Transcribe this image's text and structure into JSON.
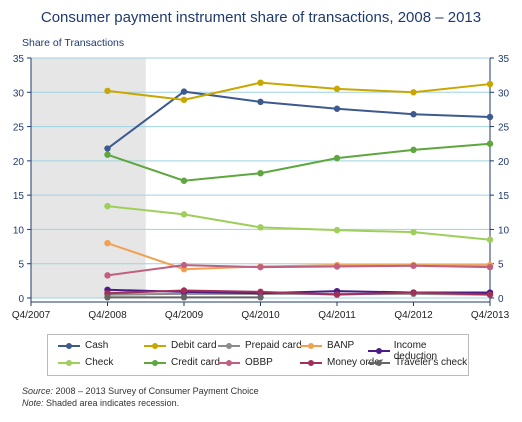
{
  "chart_data": {
    "type": "line",
    "title": "Consumer payment instrument share of transactions, 2008 – 2013",
    "ylabel": "Share of Transactions",
    "xlabel": "",
    "categories": [
      "Q4/2007",
      "Q4/2008",
      "Q4/2009",
      "Q4/2010",
      "Q4/2011",
      "Q4/2012",
      "Q4/2013"
    ],
    "ylim": [
      0,
      35
    ],
    "yticks": [
      0,
      5,
      10,
      15,
      20,
      25,
      30,
      35
    ],
    "grid": true,
    "recession_shading": {
      "from": "Q4/2007",
      "to": "Q2/2009",
      "color": "#e6e6e6"
    },
    "legend_position": "bottom",
    "series": [
      {
        "name": "Cash",
        "color": "#3d5a8f",
        "values": [
          null,
          21.8,
          30.1,
          28.6,
          27.6,
          26.8,
          26.4
        ]
      },
      {
        "name": "Debit card",
        "color": "#c9a700",
        "values": [
          null,
          30.2,
          28.9,
          31.4,
          30.5,
          30.0,
          31.2
        ]
      },
      {
        "name": "Prepaid card",
        "color": "#8c8c8c",
        "values": [
          null,
          0.5,
          0.6,
          0.6,
          0.6,
          0.6,
          0.5
        ]
      },
      {
        "name": "BANP",
        "color": "#f0a050",
        "values": [
          null,
          8.0,
          4.2,
          4.6,
          4.8,
          4.8,
          4.8
        ]
      },
      {
        "name": "Income deduction",
        "color": "#4b1c87",
        "values": [
          null,
          1.2,
          0.9,
          0.7,
          1.0,
          0.8,
          0.8
        ]
      },
      {
        "name": "Check",
        "color": "#9ecf5a",
        "values": [
          null,
          13.4,
          12.2,
          10.3,
          9.9,
          9.6,
          8.5
        ]
      },
      {
        "name": "Credit card",
        "color": "#5ea63e",
        "values": [
          null,
          20.9,
          17.1,
          18.2,
          20.4,
          21.6,
          22.5
        ]
      },
      {
        "name": "OBBP",
        "color": "#c06080",
        "values": [
          null,
          3.3,
          4.8,
          4.5,
          4.6,
          4.7,
          4.5
        ]
      },
      {
        "name": "Money order",
        "color": "#a0305a",
        "values": [
          null,
          0.7,
          1.1,
          0.9,
          0.5,
          0.8,
          0.5
        ]
      },
      {
        "name": "Traveler's check",
        "color": "#666666",
        "values": [
          null,
          0.1,
          0.1,
          0.1,
          null,
          null,
          null
        ]
      }
    ]
  },
  "notes": {
    "source_label": "Source:",
    "source_text": " 2008 – 2013 Survey of Consumer Payment Choice",
    "note_label": "Note:",
    "note_text": " Shaded area indicates recession."
  }
}
